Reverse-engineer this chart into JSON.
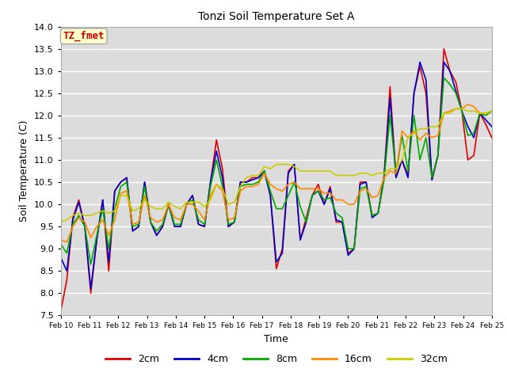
{
  "title": "Tonzi Soil Temperature Set A",
  "xlabel": "Time",
  "ylabel": "Soil Temperature (C)",
  "ylim": [
    7.5,
    14.0
  ],
  "background_color": "#dcdcdc",
  "plot_bg_color": "#dcdcdc",
  "annotation_text": "TZ_fmet",
  "annotation_color": "#cc0000",
  "annotation_bg": "#ffffcc",
  "annotation_border": "#aaaaaa",
  "x_tick_labels": [
    "Feb 10",
    "Feb 11",
    "Feb 12",
    "Feb 13",
    "Feb 14",
    "Feb 15",
    "Feb 16",
    "Feb 17",
    "Feb 18",
    "Feb 19",
    "Feb 20",
    "Feb 21",
    "Feb 22",
    "Feb 23",
    "Feb 24",
    "Feb 25"
  ],
  "series": {
    "2cm": {
      "color": "#dd0000",
      "linewidth": 1.2
    },
    "4cm": {
      "color": "#0000cc",
      "linewidth": 1.2
    },
    "8cm": {
      "color": "#00aa00",
      "linewidth": 1.2
    },
    "16cm": {
      "color": "#ff8800",
      "linewidth": 1.2
    },
    "32cm": {
      "color": "#cccc00",
      "linewidth": 1.2
    }
  },
  "y_2cm": [
    7.6,
    8.3,
    9.7,
    10.1,
    9.5,
    8.0,
    9.2,
    10.1,
    8.5,
    10.3,
    10.5,
    10.6,
    9.4,
    9.5,
    10.5,
    9.6,
    9.3,
    9.5,
    10.0,
    9.5,
    9.5,
    10.0,
    10.2,
    9.55,
    9.5,
    10.5,
    11.45,
    10.8,
    9.5,
    9.6,
    10.5,
    10.5,
    10.6,
    10.6,
    10.75,
    10.2,
    8.55,
    9.0,
    10.75,
    10.9,
    9.2,
    9.7,
    10.2,
    10.45,
    10.0,
    10.4,
    9.6,
    9.6,
    8.9,
    9.0,
    10.5,
    10.5,
    9.75,
    9.8,
    10.65,
    12.65,
    10.6,
    11.0,
    10.65,
    12.5,
    13.1,
    12.5,
    10.55,
    11.1,
    13.5,
    13.0,
    12.75,
    12.1,
    11.0,
    11.1,
    12.05,
    11.8,
    11.5
  ],
  "y_4cm": [
    8.8,
    8.5,
    9.65,
    10.05,
    9.5,
    8.1,
    9.2,
    10.1,
    8.7,
    10.3,
    10.5,
    10.6,
    9.4,
    9.5,
    10.5,
    9.6,
    9.3,
    9.5,
    10.0,
    9.5,
    9.5,
    10.0,
    10.2,
    9.55,
    9.5,
    10.5,
    11.2,
    10.6,
    9.5,
    9.6,
    10.5,
    10.5,
    10.55,
    10.6,
    10.75,
    10.2,
    8.7,
    8.9,
    10.7,
    10.9,
    9.2,
    9.6,
    10.2,
    10.3,
    10.0,
    10.35,
    9.65,
    9.6,
    8.85,
    9.0,
    10.45,
    10.5,
    9.7,
    9.8,
    10.6,
    12.4,
    10.6,
    11.0,
    10.6,
    12.5,
    13.2,
    12.8,
    10.55,
    11.1,
    13.2,
    13.0,
    12.55,
    12.1,
    11.75,
    11.5,
    12.05,
    11.9,
    11.75
  ],
  "y_8cm": [
    9.1,
    8.9,
    9.55,
    9.75,
    9.5,
    8.65,
    9.3,
    9.9,
    9.0,
    9.9,
    10.4,
    10.5,
    9.5,
    9.55,
    10.4,
    9.6,
    9.4,
    9.55,
    10.0,
    9.55,
    9.55,
    10.0,
    10.1,
    9.65,
    9.55,
    10.4,
    11.0,
    10.4,
    9.55,
    9.6,
    10.4,
    10.45,
    10.45,
    10.5,
    10.75,
    10.3,
    9.9,
    9.9,
    10.2,
    10.5,
    9.95,
    9.6,
    10.2,
    10.3,
    10.1,
    10.15,
    9.8,
    9.7,
    9.0,
    9.0,
    10.35,
    10.4,
    9.75,
    9.8,
    10.55,
    12.0,
    10.7,
    11.55,
    10.75,
    12.0,
    11.0,
    11.5,
    10.6,
    11.1,
    12.85,
    12.7,
    12.5,
    12.1,
    11.55,
    11.6,
    12.05,
    12.0,
    12.1
  ],
  "y_16cm": [
    9.2,
    9.15,
    9.5,
    9.7,
    9.6,
    9.25,
    9.5,
    9.65,
    9.3,
    9.65,
    10.25,
    10.3,
    9.55,
    9.6,
    10.2,
    9.7,
    9.6,
    9.65,
    10.0,
    9.7,
    9.65,
    10.0,
    10.0,
    9.85,
    9.65,
    10.2,
    10.45,
    10.3,
    9.65,
    9.7,
    10.3,
    10.4,
    10.4,
    10.45,
    10.7,
    10.45,
    10.35,
    10.3,
    10.45,
    10.5,
    10.35,
    10.35,
    10.35,
    10.35,
    10.25,
    10.25,
    10.1,
    10.1,
    10.0,
    10.0,
    10.3,
    10.35,
    10.15,
    10.2,
    10.6,
    10.75,
    10.7,
    11.65,
    11.5,
    11.65,
    11.45,
    11.6,
    11.5,
    11.55,
    12.05,
    12.1,
    12.15,
    12.15,
    12.25,
    12.2,
    12.05,
    12.05,
    12.1
  ],
  "y_32cm": [
    9.6,
    9.65,
    9.75,
    9.8,
    9.75,
    9.75,
    9.8,
    9.85,
    9.8,
    9.85,
    10.2,
    10.2,
    9.85,
    9.9,
    10.1,
    9.95,
    9.9,
    9.9,
    10.05,
    9.95,
    9.9,
    10.05,
    10.05,
    10.05,
    9.95,
    10.1,
    10.45,
    10.35,
    10.0,
    10.05,
    10.4,
    10.6,
    10.65,
    10.65,
    10.85,
    10.8,
    10.9,
    10.9,
    10.9,
    10.85,
    10.75,
    10.75,
    10.75,
    10.75,
    10.75,
    10.75,
    10.65,
    10.65,
    10.65,
    10.65,
    10.7,
    10.7,
    10.65,
    10.7,
    10.7,
    10.8,
    10.8,
    11.0,
    11.5,
    11.6,
    11.7,
    11.7,
    11.75,
    11.75,
    12.05,
    12.05,
    12.15,
    12.15,
    12.1,
    12.1,
    12.05,
    12.05,
    12.1
  ]
}
